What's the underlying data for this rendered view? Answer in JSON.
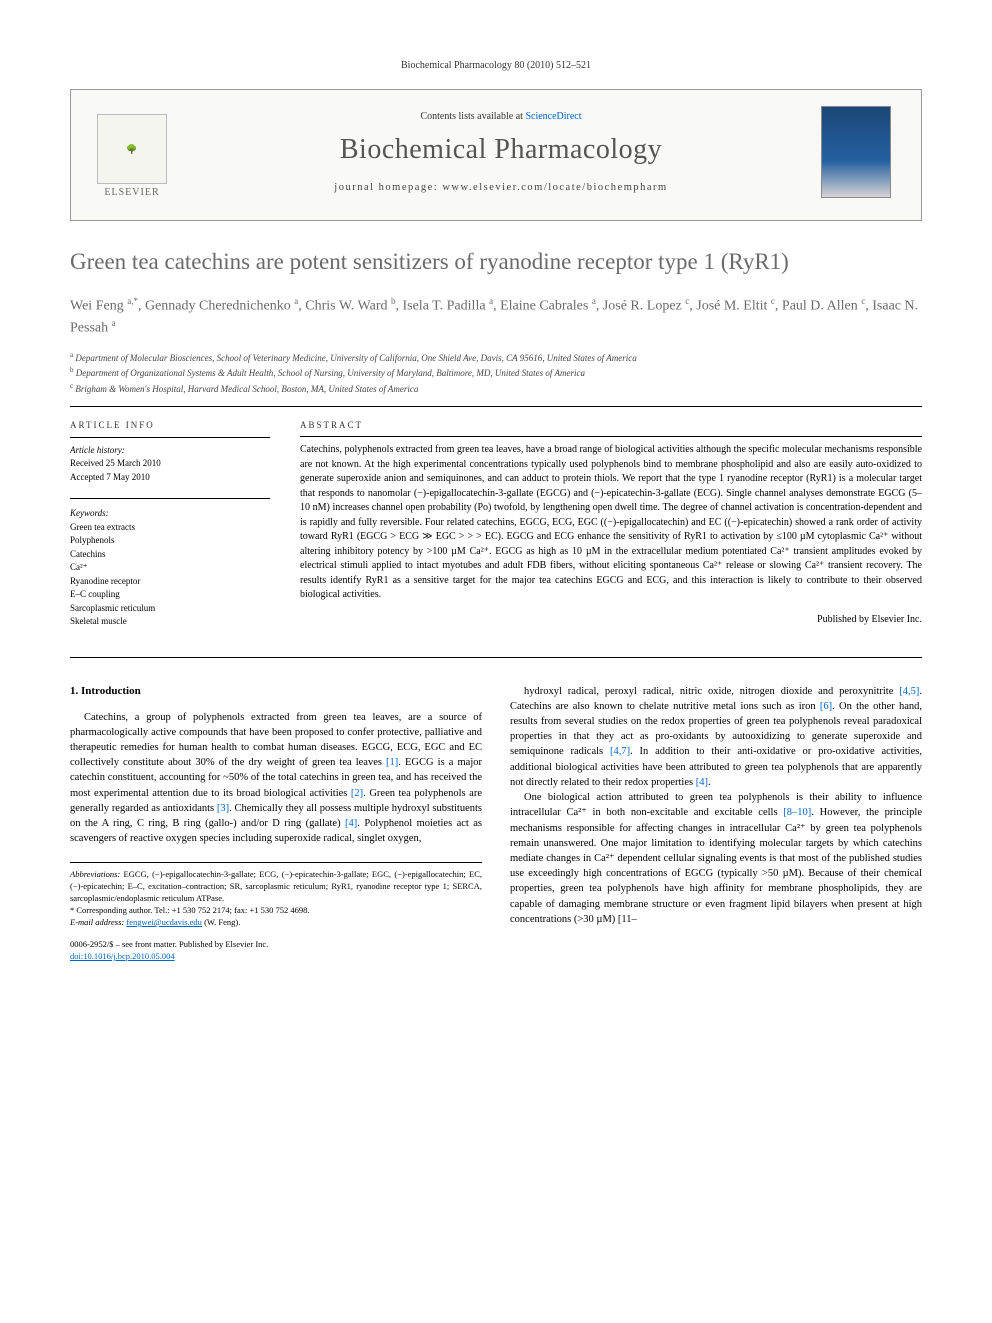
{
  "running_header": "Biochemical Pharmacology 80 (2010) 512–521",
  "header": {
    "contents_prefix": "Contents lists available at ",
    "contents_link": "ScienceDirect",
    "journal_name": "Biochemical Pharmacology",
    "homepage_label": "journal homepage: www.elsevier.com/locate/biochempharm",
    "publisher": "ELSEVIER"
  },
  "title": "Green tea catechins are potent sensitizers of ryanodine receptor type 1 (RyR1)",
  "authors_html": "Wei Feng <sup>a,*</sup>, Gennady Cherednichenko <sup>a</sup>, Chris W. Ward <sup>b</sup>, Isela T. Padilla <sup>a</sup>, Elaine Cabrales <sup>a</sup>, José R. Lopez <sup>c</sup>, José M. Eltit <sup>c</sup>, Paul D. Allen <sup>c</sup>, Isaac N. Pessah <sup>a</sup>",
  "affiliations": [
    {
      "sup": "a",
      "text": "Department of Molecular Biosciences, School of Veterinary Medicine, University of California, One Shield Ave, Davis, CA 95616, United States of America"
    },
    {
      "sup": "b",
      "text": "Department of Organizational Systems & Adult Health, School of Nursing, University of Maryland, Baltimore, MD, United States of America"
    },
    {
      "sup": "c",
      "text": "Brigham & Women's Hospital, Harvard Medical School, Boston, MA, United States of America"
    }
  ],
  "article_info": {
    "heading": "ARTICLE INFO",
    "history_label": "Article history:",
    "received": "Received 25 March 2010",
    "accepted": "Accepted 7 May 2010",
    "keywords_label": "Keywords:",
    "keywords": [
      "Green tea extracts",
      "Polyphenols",
      "Catechins",
      "Ca²⁺",
      "Ryanodine receptor",
      "E–C coupling",
      "Sarcoplasmic reticulum",
      "Skeletal muscle"
    ]
  },
  "abstract": {
    "heading": "ABSTRACT",
    "text": "Catechins, polyphenols extracted from green tea leaves, have a broad range of biological activities although the specific molecular mechanisms responsible are not known. At the high experimental concentrations typically used polyphenols bind to membrane phospholipid and also are easily auto-oxidized to generate superoxide anion and semiquinones, and can adduct to protein thiols. We report that the type 1 ryanodine receptor (RyR1) is a molecular target that responds to nanomolar (−)-epigallocatechin-3-gallate (EGCG) and (−)-epicatechin-3-gallate (ECG). Single channel analyses demonstrate EGCG (5–10 nM) increases channel open probability (Po) twofold, by lengthening open dwell time. The degree of channel activation is concentration-dependent and is rapidly and fully reversible. Four related catechins, EGCG, ECG, EGC ((−)-epigallocatechin) and EC ((−)-epicatechin) showed a rank order of activity toward RyR1 (EGCG > ECG ≫ EGC > > > EC). EGCG and ECG enhance the sensitivity of RyR1 to activation by ≤100 µM cytoplasmic Ca²⁺ without altering inhibitory potency by >100 µM Ca²⁺. EGCG as high as 10 µM in the extracellular medium potentiated Ca²⁺ transient amplitudes evoked by electrical stimuli applied to intact myotubes and adult FDB fibers, without eliciting spontaneous Ca²⁺ release or slowing Ca²⁺ transient recovery. The results identify RyR1 as a sensitive target for the major tea catechins EGCG and ECG, and this interaction is likely to contribute to their observed biological activities.",
    "published_by": "Published by Elsevier Inc."
  },
  "body": {
    "section_heading": "1. Introduction",
    "p1": "Catechins, a group of polyphenols extracted from green tea leaves, are a source of pharmacologically active compounds that have been proposed to confer protective, palliative and therapeutic remedies for human health to combat human diseases. EGCG, ECG, EGC and EC collectively constitute about 30% of the dry weight of green tea leaves [1]. EGCG is a major catechin constituent, accounting for ~50% of the total catechins in green tea, and has received the most experimental attention due to its broad biological activities [2]. Green tea polyphenols are generally regarded as antioxidants [3]. Chemically they all possess multiple hydroxyl substituents on the A ring, C ring, B ring (gallo-) and/or D ring (gallate) [4]. Polyphenol moieties act as scavengers of reactive oxygen species including superoxide radical, singlet oxygen,",
    "p2": "hydroxyl radical, peroxyl radical, nitric oxide, nitrogen dioxide and peroxynitrite [4,5]. Catechins are also known to chelate nutritive metal ions such as iron [6]. On the other hand, results from several studies on the redox properties of green tea polyphenols reveal paradoxical properties in that they act as pro-oxidants by autooxidizing to generate superoxide and semiquinone radicals [4,7]. In addition to their anti-oxidative or pro-oxidative activities, additional biological activities have been attributed to green tea polyphenols that are apparently not directly related to their redox properties [4].",
    "p3": "One biological action attributed to green tea polyphenols is their ability to influence intracellular Ca²⁺ in both non-excitable and excitable cells [8–10]. However, the principle mechanisms responsible for affecting changes in intracellular Ca²⁺ by green tea polyphenols remain unanswered. One major limitation to identifying molecular targets by which catechins mediate changes in Ca²⁺ dependent cellular signaling events is that most of the published studies use exceedingly high concentrations of EGCG (typically >50 µM). Because of their chemical properties, green tea polyphenols have high affinity for membrane phospholipids, they are capable of damaging membrane structure or even fragment lipid bilayers when present at high concentrations (>30 µM) [11–"
  },
  "footnotes": {
    "abbrev_label": "Abbreviations:",
    "abbrev_text": " EGCG, (−)-epigallocatechin-3-gallate; ECG, (−)-epicatechin-3-gallate; EGC, (−)-epigallocatechin; EC, (−)-epicatechin; E–C, excitation–contraction; SR, sarcoplasmic reticulum; RyR1, ryanodine receptor type 1; SERCA, sarcoplasmic/endoplasmic reticulum ATPase.",
    "corresponding": "* Corresponding author. Tel.: +1 530 752 2174; fax: +1 530 752 4698.",
    "email_label": "E-mail address:",
    "email": "fengwei@ucdavis.edu",
    "email_suffix": " (W. Feng)."
  },
  "copyright": {
    "line1": "0006-2952/$ – see front matter. Published by Elsevier Inc.",
    "doi": "doi:10.1016/j.bcp.2010.05.004"
  }
}
